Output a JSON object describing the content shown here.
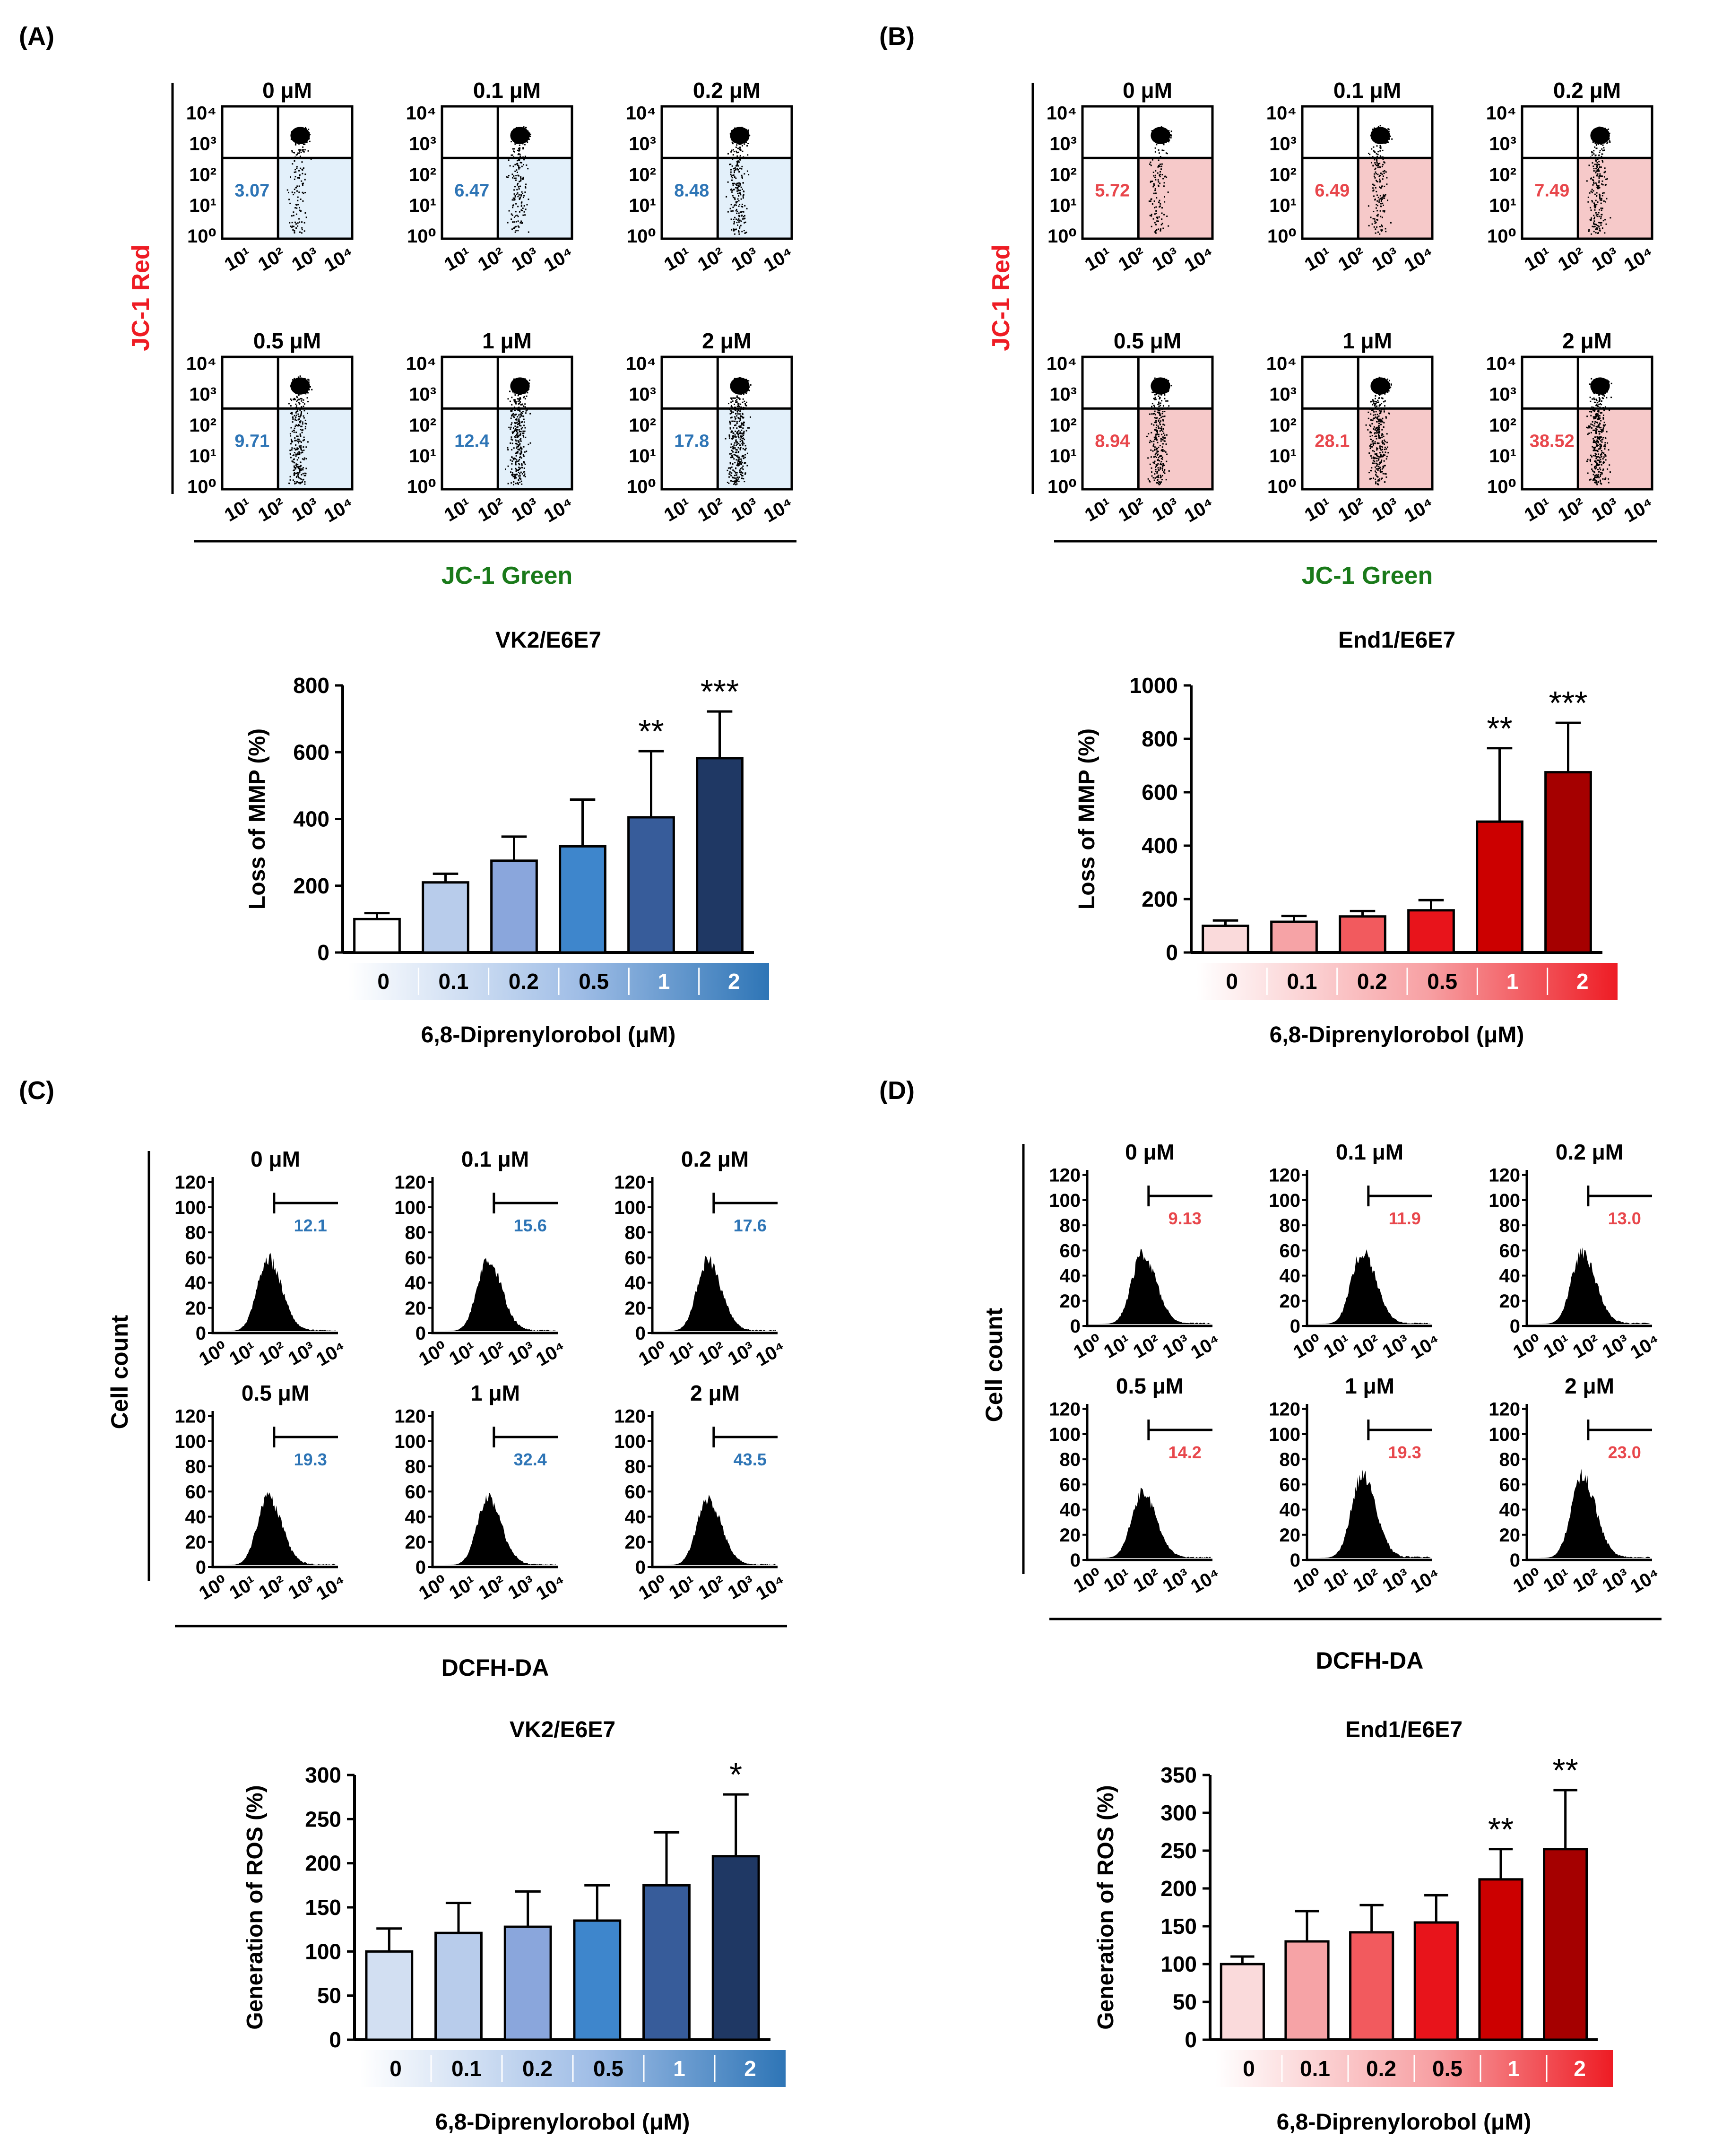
{
  "panel_labels": [
    "(A)",
    "(B)",
    "(C)",
    "(D)"
  ],
  "colors": {
    "blue_text": "#2e75b6",
    "red_text": "#e8474c",
    "axis_red": "#ee1c24",
    "axis_green": "#1a7a1a",
    "blue_fill": "#e3f0fa",
    "red_fill": "#f6c9c9"
  },
  "concentrations": [
    "0 μM",
    "0.1 μM",
    "0.2 μM",
    "0.5 μM",
    "1 μM",
    "2 μM"
  ],
  "scatter_y_ticks": [
    "10⁰",
    "10¹",
    "10²",
    "10³",
    "10⁴"
  ],
  "scatter_x_ticks": [
    "10¹",
    "10²",
    "10³",
    "10⁴"
  ],
  "hist_x_ticks": [
    "10⁰",
    "10¹",
    "10²",
    "10³",
    "10⁴"
  ],
  "hist_y_ticks": [
    "0",
    "20",
    "40",
    "60",
    "80",
    "100",
    "120"
  ],
  "panelA": {
    "ylabel": "JC-1 Red",
    "xlabel": "JC-1 Green",
    "values": [
      "3.07",
      "6.47",
      "8.48",
      "9.71",
      "12.4",
      "17.8"
    ]
  },
  "panelB": {
    "ylabel": "JC-1 Red",
    "xlabel": "JC-1 Green",
    "values": [
      "5.72",
      "6.49",
      "7.49",
      "8.94",
      "28.1",
      "38.52"
    ]
  },
  "panelC": {
    "ylabel": "Cell count",
    "xlabel": "DCFH-DA",
    "values": [
      "12.1",
      "15.6",
      "17.6",
      "19.3",
      "32.4",
      "43.5"
    ]
  },
  "panelD": {
    "ylabel": "Cell count",
    "xlabel": "DCFH-DA",
    "values": [
      "9.13",
      "11.9",
      "13.0",
      "14.2",
      "19.3",
      "23.0"
    ]
  },
  "chart_data": [
    {
      "type": "bar",
      "title": "VK2/E6E7",
      "xlabel": "6,8-Diprenylorobol (μM)",
      "ylabel": "Loss of  MMP (%)",
      "categories": [
        "0",
        "0.1",
        "0.2",
        "0.5",
        "1",
        "2"
      ],
      "values": [
        100,
        210,
        275,
        318,
        405,
        582
      ],
      "errors": [
        18,
        26,
        72,
        140,
        198,
        140
      ],
      "significance": [
        "",
        "",
        "",
        "",
        "**",
        "***"
      ],
      "ylim": [
        0,
        800
      ],
      "yticks": [
        "0",
        "200",
        "400",
        "600",
        "800"
      ],
      "bar_colors": [
        "#ffffff",
        "#b8cceb",
        "#8aa6dc",
        "#3e86cc",
        "#375c9a",
        "#1f3864"
      ]
    },
    {
      "type": "bar",
      "title": "End1/E6E7",
      "xlabel": "6,8-Diprenylorobol (μM)",
      "ylabel": "Loss of  MMP (%)",
      "categories": [
        "0",
        "0.1",
        "0.2",
        "0.5",
        "1",
        "2"
      ],
      "values": [
        100,
        115,
        135,
        158,
        490,
        675
      ],
      "errors": [
        20,
        22,
        20,
        38,
        275,
        185
      ],
      "significance": [
        "",
        "",
        "",
        "",
        "**",
        "***"
      ],
      "ylim": [
        0,
        1000
      ],
      "yticks": [
        "0",
        "200",
        "400",
        "600",
        "800",
        "1000"
      ],
      "bar_colors": [
        "#fadadb",
        "#f6a3a6",
        "#f25a5e",
        "#e8141b",
        "#cc0000",
        "#a50000"
      ]
    },
    {
      "type": "bar",
      "title": "VK2/E6E7",
      "xlabel": "6,8-Diprenylorobol (μM)",
      "ylabel": "Generation of ROS (%)",
      "categories": [
        "0",
        "0.1",
        "0.2",
        "0.5",
        "1",
        "2"
      ],
      "values": [
        100,
        121,
        128,
        135,
        175,
        208
      ],
      "errors": [
        26,
        34,
        40,
        40,
        60,
        70
      ],
      "significance": [
        "",
        "",
        "",
        "",
        "",
        "*"
      ],
      "ylim": [
        0,
        300
      ],
      "yticks": [
        "0",
        "50",
        "100",
        "150",
        "200",
        "250",
        "300"
      ],
      "bar_colors": [
        "#d2dff2",
        "#b8cceb",
        "#8aa6dc",
        "#3e86cc",
        "#375c9a",
        "#1f3864"
      ]
    },
    {
      "type": "bar",
      "title": "End1/E6E7",
      "xlabel": "6,8-Diprenylorobol (μM)",
      "ylabel": "Generation of ROS (%)",
      "categories": [
        "0",
        "0.1",
        "0.2",
        "0.5",
        "1",
        "2"
      ],
      "values": [
        100,
        130,
        142,
        155,
        212,
        252
      ],
      "errors": [
        10,
        40,
        36,
        36,
        40,
        78
      ],
      "significance": [
        "",
        "",
        "",
        "",
        "**",
        "**"
      ],
      "ylim": [
        0,
        350
      ],
      "yticks": [
        "0",
        "50",
        "100",
        "150",
        "200",
        "250",
        "300",
        "350"
      ],
      "bar_colors": [
        "#fadadb",
        "#f6a3a6",
        "#f25a5e",
        "#e8141b",
        "#cc0000",
        "#a50000"
      ]
    }
  ]
}
